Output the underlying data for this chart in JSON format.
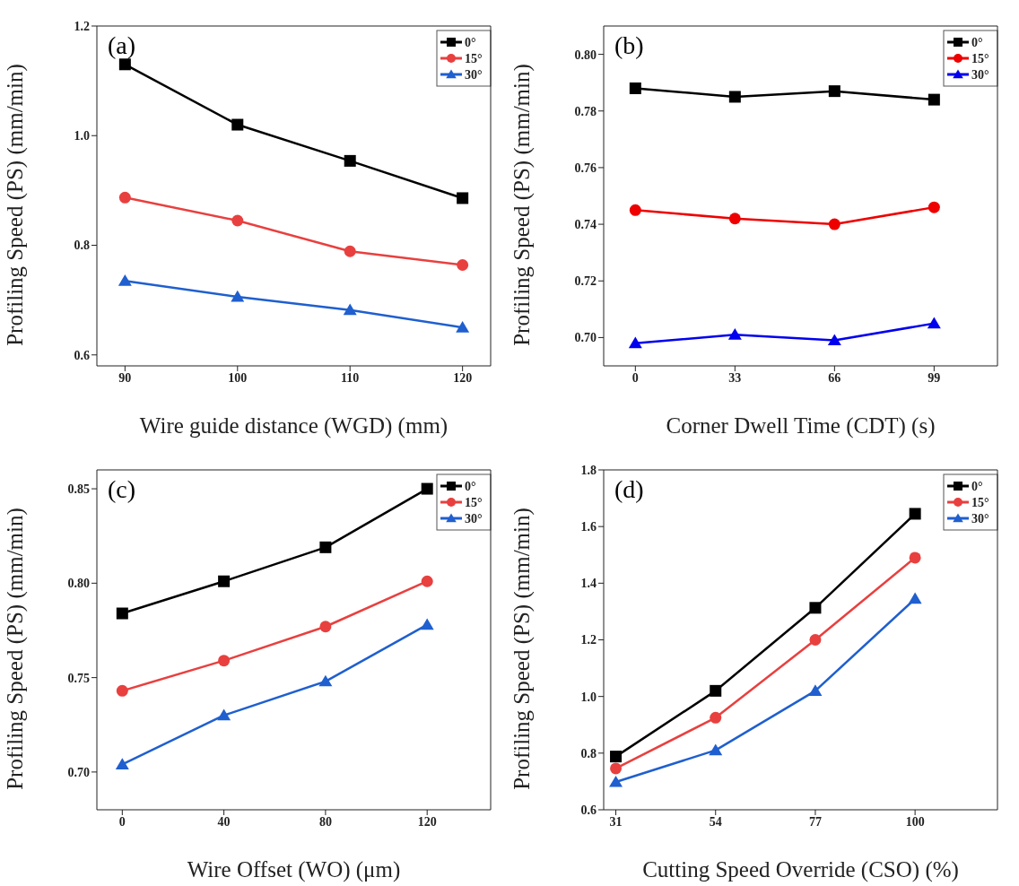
{
  "chart_data": [
    {
      "type": "line",
      "annotations": [
        "(a)"
      ],
      "xlabel": "Wire guide distance (WGD) (mm)",
      "ylabel": "Profiling Speed (PS) (mm/min)",
      "x": [
        90,
        100,
        110,
        120
      ],
      "xlim": [
        87.5,
        122.5
      ],
      "xticks": [
        90,
        100,
        110,
        120
      ],
      "ylim": [
        0.58,
        1.2
      ],
      "yticks": [
        0.6,
        0.8,
        {
          "value": 1,
          "label": "1.0"
        },
        1.2
      ],
      "grid": false,
      "legend": "top right",
      "line_style": "solid",
      "series": [
        {
          "name": "0°",
          "color": "#000000",
          "marker": "square",
          "values": [
            1.13,
            1.02,
            0.954,
            0.886
          ]
        },
        {
          "name": "15°",
          "color": "#e8403f",
          "marker": "circle",
          "values": [
            0.887,
            0.845,
            0.789,
            0.764
          ]
        },
        {
          "name": "30°",
          "color": "#1f5fcf",
          "marker": "triangle",
          "values": [
            0.735,
            0.706,
            0.682,
            0.65
          ]
        }
      ]
    },
    {
      "type": "line",
      "annotations": [
        "(b)"
      ],
      "xlabel": "Corner Dwell Time (CDT) (s)",
      "ylabel": "Profiling Speed (PS) (mm/min)",
      "x": [
        0,
        33,
        66,
        99
      ],
      "xlim": [
        -10.5,
        120
      ],
      "xticks": [
        0,
        33,
        66,
        99
      ],
      "ylim": [
        0.69,
        0.81
      ],
      "yticks": [
        {
          "value": 0.7,
          "label": "0.70"
        },
        0.72,
        0.74,
        0.76,
        0.78,
        {
          "value": 0.8,
          "label": "0.80"
        }
      ],
      "grid": false,
      "legend": "top right",
      "line_style": "solid",
      "series": [
        {
          "name": "0°",
          "color": "#000000",
          "marker": "square",
          "values": [
            0.788,
            0.785,
            0.787,
            0.784
          ]
        },
        {
          "name": "15°",
          "color": "#ee0000",
          "marker": "circle",
          "values": [
            0.745,
            0.742,
            0.74,
            0.746
          ]
        },
        {
          "name": "30°",
          "color": "#0000ee",
          "marker": "triangle",
          "values": [
            0.698,
            0.701,
            0.699,
            0.705
          ]
        }
      ]
    },
    {
      "type": "line",
      "annotations": [
        "(c)"
      ],
      "xlabel": "Wire Offset (WO) (μm)",
      "ylabel": "Profiling Speed (PS) (mm/min)",
      "x": [
        0,
        40,
        80,
        120
      ],
      "xlim": [
        -10,
        145
      ],
      "xticks": [
        0,
        40,
        80,
        120
      ],
      "ylim": [
        0.68,
        0.86
      ],
      "yticks": [
        {
          "value": 0.7,
          "label": "0.70"
        },
        0.75,
        {
          "value": 0.8,
          "label": "0.80"
        },
        0.85
      ],
      "grid": false,
      "legend": "top right",
      "line_style": "solid",
      "series": [
        {
          "name": "0°",
          "color": "#000000",
          "marker": "square",
          "values": [
            0.784,
            0.801,
            0.819,
            0.85
          ]
        },
        {
          "name": "15°",
          "color": "#e8403f",
          "marker": "circle",
          "values": [
            0.743,
            0.759,
            0.777,
            0.801
          ]
        },
        {
          "name": "30°",
          "color": "#1f5fcf",
          "marker": "triangle",
          "values": [
            0.704,
            0.73,
            0.748,
            0.778
          ]
        }
      ]
    },
    {
      "type": "line",
      "annotations": [
        "(d)"
      ],
      "xlabel": "Cutting Speed Override (CSO) (%)",
      "ylabel": "Profiling Speed (PS) (mm/min)",
      "x": [
        31,
        54,
        77,
        100
      ],
      "xlim": [
        28.2,
        119
      ],
      "xticks": [
        31,
        54,
        77,
        100
      ],
      "ylim": [
        0.6,
        1.8
      ],
      "yticks": [
        0.6,
        0.8,
        {
          "value": 1,
          "label": "1.0"
        },
        1.2,
        1.4,
        1.6,
        1.8
      ],
      "grid": false,
      "legend": "top right",
      "line_style": "solid",
      "series": [
        {
          "name": "0°",
          "color": "#000000",
          "marker": "square",
          "values": [
            0.788,
            1.02,
            1.313,
            1.645
          ]
        },
        {
          "name": "15°",
          "color": "#e8403f",
          "marker": "circle",
          "values": [
            0.746,
            0.925,
            1.2,
            1.49
          ]
        },
        {
          "name": "30°",
          "color": "#1f5fcf",
          "marker": "triangle",
          "values": [
            0.698,
            0.81,
            1.02,
            1.345
          ]
        }
      ]
    }
  ]
}
